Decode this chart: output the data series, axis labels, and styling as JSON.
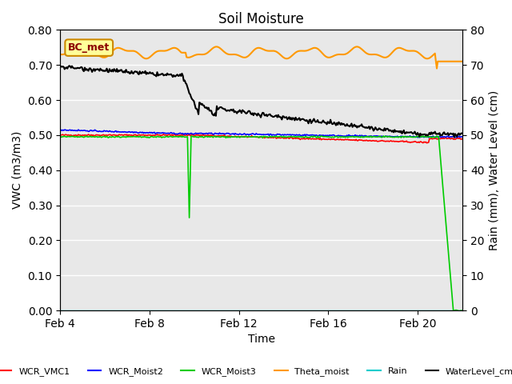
{
  "title": "Soil Moisture",
  "xlabel": "Time",
  "ylabel_left": "VWC (m3/m3)",
  "ylabel_right": "Rain (mm), Water Level (cm)",
  "ylim_left": [
    0.0,
    0.8
  ],
  "ylim_right": [
    0,
    80
  ],
  "yticks_left": [
    0.0,
    0.1,
    0.2,
    0.3,
    0.4,
    0.5,
    0.6,
    0.7,
    0.8
  ],
  "yticks_right": [
    0,
    10,
    20,
    30,
    40,
    50,
    60,
    70,
    80
  ],
  "date_start": 4,
  "date_end": 22,
  "xtick_labels": [
    "Feb 4",
    "Feb 8",
    "Feb 12",
    "Feb 16",
    "Feb 20"
  ],
  "xtick_positions": [
    4,
    8,
    12,
    16,
    20
  ],
  "background_color": "#e8e8e8",
  "box_label": "BC_met",
  "legend_entries": [
    "WCR_VMC1",
    "WCR_Moist2",
    "WCR_Moist3",
    "Theta_moist",
    "Rain",
    "WaterLevel_cm"
  ],
  "legend_colors": [
    "#ff0000",
    "#0000ff",
    "#00cc00",
    "#ff9900",
    "#00cccc",
    "#000000"
  ]
}
